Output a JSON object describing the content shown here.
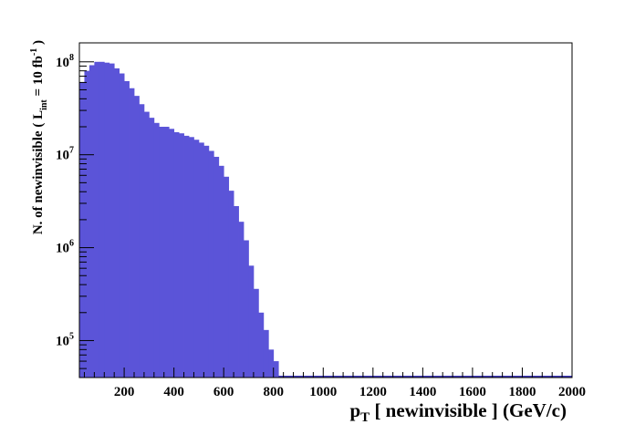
{
  "chart_data": {
    "type": "bar",
    "style": "histogram",
    "fill_color": "#5b54d8",
    "edge_color": "#3e38b8",
    "xlabel": {
      "main": "p",
      "sub": "T",
      "rest": " [ newinvisible ] (GeV/c)"
    },
    "ylabel": {
      "main": "N. of newinvisible ( L",
      "sub": "int",
      "mid": " = 10 fb",
      "sup": "-1",
      "end": " )"
    },
    "xlim": [
      20,
      2000
    ],
    "ylim": [
      40000,
      160000000
    ],
    "yscale": "log",
    "grid": false,
    "x_ticks": [
      "200",
      "400",
      "600",
      "800",
      "1000",
      "1200",
      "1400",
      "1600",
      "1800",
      "2000"
    ],
    "y_ticks": [
      {
        "base": "10",
        "exp": "5"
      },
      {
        "base": "10",
        "exp": "6"
      },
      {
        "base": "10",
        "exp": "7"
      },
      {
        "base": "10",
        "exp": "8"
      }
    ],
    "bin_width": 20,
    "x_start": 20,
    "values": [
      60000000,
      80000000,
      92000000,
      100000000,
      100000000,
      98000000,
      96000000,
      85000000,
      75000000,
      62000000,
      52000000,
      43000000,
      35000000,
      29000000,
      25000000,
      22000000,
      20000000,
      20000000,
      19000000,
      17500000,
      17000000,
      16000000,
      15500000,
      14500000,
      13500000,
      12500000,
      11000000,
      9500000,
      7600000,
      5800000,
      4100000,
      2800000,
      1900000,
      1200000,
      640000,
      360000,
      200000,
      130000,
      80000,
      60000
    ]
  }
}
